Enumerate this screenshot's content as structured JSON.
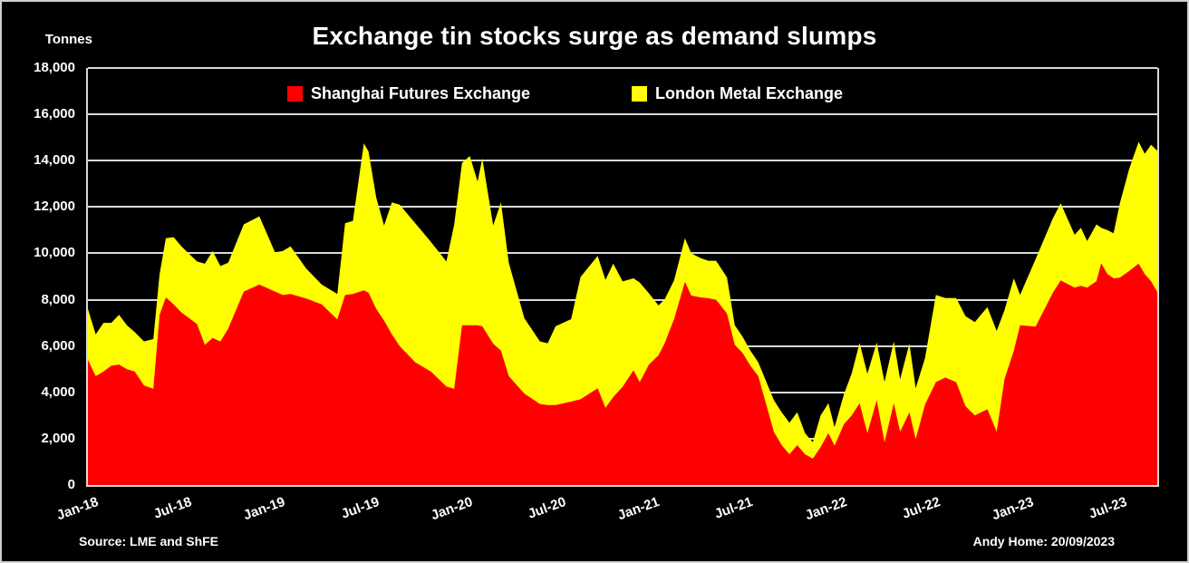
{
  "title": "Exchange tin stocks surge as demand slumps",
  "y_axis": {
    "unit_label": "Tonnes",
    "ticks": [
      "0",
      "2,000",
      "4,000",
      "6,000",
      "8,000",
      "10,000",
      "12,000",
      "14,000",
      "16,000",
      "18,000"
    ]
  },
  "x_axis": {
    "ticks": [
      {
        "label": "Jan-18",
        "m": 0
      },
      {
        "label": "Jul-18",
        "m": 6
      },
      {
        "label": "Jan-19",
        "m": 12
      },
      {
        "label": "Jul-19",
        "m": 18
      },
      {
        "label": "Jan-20",
        "m": 24
      },
      {
        "label": "Jul-20",
        "m": 30
      },
      {
        "label": "Jan-21",
        "m": 36
      },
      {
        "label": "Jul-21",
        "m": 42
      },
      {
        "label": "Jan-22",
        "m": 48
      },
      {
        "label": "Jul-22",
        "m": 54
      },
      {
        "label": "Jan-23",
        "m": 60
      },
      {
        "label": "Jul-23",
        "m": 66
      }
    ]
  },
  "legend": [
    {
      "label": "Shanghai Futures Exchange",
      "color": "#ff0000"
    },
    {
      "label": "London Metal Exchange",
      "color": "#ffff00"
    }
  ],
  "footer": {
    "source": "Source: LME and ShFE",
    "credit": "Andy Home: 20/09/2023"
  },
  "colors": {
    "background": "#000000",
    "text": "#ffffff",
    "gridline": "#d9d9d9",
    "shfe": "#ff0000",
    "lme": "#ffff00"
  },
  "chart_data": {
    "type": "area",
    "stacked": true,
    "title": "Exchange tin stocks surge as demand slumps",
    "ylabel": "Tonnes",
    "ylim": [
      0,
      18000
    ],
    "grid": true,
    "legend_position": "top",
    "x_unit": "months since Jan-2018 (series ends 20/09/2023)",
    "x_domain": [
      0,
      68.6
    ],
    "series_names": [
      "Shanghai Futures Exchange",
      "London Metal Exchange"
    ],
    "points_format": [
      "month_index",
      "shfe_tonnes",
      "lme_tonnes"
    ],
    "points": [
      [
        0,
        5400,
        2200
      ],
      [
        0.5,
        4700,
        1800
      ],
      [
        1,
        4900,
        2100
      ],
      [
        1.5,
        5150,
        1850
      ],
      [
        2,
        5200,
        2150
      ],
      [
        2.5,
        5000,
        1900
      ],
      [
        3,
        4900,
        1700
      ],
      [
        3.6,
        4300,
        1900
      ],
      [
        4.2,
        4150,
        2150
      ],
      [
        4.6,
        7350,
        1750
      ],
      [
        5,
        8100,
        2550
      ],
      [
        5.5,
        7800,
        2900
      ],
      [
        6,
        7450,
        2850
      ],
      [
        7,
        6950,
        2700
      ],
      [
        7.5,
        6050,
        3500
      ],
      [
        8,
        6350,
        3750
      ],
      [
        8.5,
        6200,
        3250
      ],
      [
        9,
        6750,
        2850
      ],
      [
        10,
        8350,
        2900
      ],
      [
        11,
        8650,
        2950
      ],
      [
        12,
        8350,
        1700
      ],
      [
        12.5,
        8200,
        1900
      ],
      [
        13,
        8250,
        2050
      ],
      [
        14,
        8050,
        1300
      ],
      [
        15,
        7800,
        850
      ],
      [
        16,
        7150,
        1100
      ],
      [
        16.5,
        8200,
        3100
      ],
      [
        17,
        8250,
        3150
      ],
      [
        17.7,
        8400,
        6350
      ],
      [
        18,
        8300,
        6100
      ],
      [
        18.5,
        7600,
        4800
      ],
      [
        19,
        7100,
        4100
      ],
      [
        19.5,
        6500,
        5700
      ],
      [
        20,
        6000,
        6100
      ],
      [
        21,
        5300,
        6000
      ],
      [
        22,
        4900,
        5600
      ],
      [
        23,
        4250,
        5400
      ],
      [
        23.5,
        4150,
        7100
      ],
      [
        24,
        6900,
        7000
      ],
      [
        24.5,
        6900,
        7300
      ],
      [
        25,
        6900,
        6200
      ],
      [
        25.3,
        6850,
        7250
      ],
      [
        26,
        6100,
        5100
      ],
      [
        26.5,
        5800,
        6400
      ],
      [
        27,
        4700,
        4900
      ],
      [
        28,
        3950,
        3250
      ],
      [
        29,
        3500,
        2700
      ],
      [
        29.5,
        3450,
        2670
      ],
      [
        30,
        3450,
        3400
      ],
      [
        31,
        3600,
        3560
      ],
      [
        31.6,
        3700,
        5280
      ],
      [
        32.7,
        4180,
        5710
      ],
      [
        33.2,
        3330,
        5520
      ],
      [
        33.7,
        3800,
        5760
      ],
      [
        34.3,
        4240,
        4550
      ],
      [
        35,
        4950,
        3970
      ],
      [
        35.4,
        4440,
        4300
      ],
      [
        36,
        5210,
        3060
      ],
      [
        36.6,
        5600,
        2150
      ],
      [
        37,
        6120,
        1890
      ],
      [
        37.6,
        7160,
        1670
      ],
      [
        38.3,
        8770,
        1880
      ],
      [
        38.7,
        8180,
        1820
      ],
      [
        39.3,
        8100,
        1700
      ],
      [
        39.8,
        8060,
        1620
      ],
      [
        40.3,
        8000,
        1680
      ],
      [
        41,
        7400,
        1560
      ],
      [
        41.5,
        6050,
        850
      ],
      [
        42,
        5700,
        700
      ],
      [
        42.5,
        5150,
        650
      ],
      [
        43,
        4700,
        600
      ],
      [
        44,
        2300,
        1370
      ],
      [
        44.5,
        1720,
        1420
      ],
      [
        45,
        1330,
        1360
      ],
      [
        45.5,
        1720,
        1420
      ],
      [
        46,
        1330,
        910
      ],
      [
        46.5,
        1140,
        710
      ],
      [
        47,
        1640,
        1360
      ],
      [
        47.5,
        2240,
        1290
      ],
      [
        47.9,
        1700,
        800
      ],
      [
        48.5,
        2630,
        1290
      ],
      [
        49,
        3010,
        1820
      ],
      [
        49.5,
        3530,
        2600
      ],
      [
        50,
        2240,
        2560
      ],
      [
        50.6,
        3660,
        2490
      ],
      [
        51.1,
        1850,
        2600
      ],
      [
        51.7,
        3530,
        2670
      ],
      [
        52.1,
        2300,
        2270
      ],
      [
        52.7,
        3140,
        2960
      ],
      [
        53.1,
        1980,
        2200
      ],
      [
        53.7,
        3470,
        2010
      ],
      [
        54.4,
        4440,
        3760
      ],
      [
        55,
        4640,
        3430
      ],
      [
        55.7,
        4440,
        3630
      ],
      [
        56.3,
        3400,
        3890
      ],
      [
        56.9,
        3010,
        4020
      ],
      [
        57.7,
        3270,
        4410
      ],
      [
        58.3,
        2300,
        4350
      ],
      [
        58.8,
        4570,
        2980
      ],
      [
        59.4,
        5800,
        3120
      ],
      [
        59.8,
        6900,
        1300
      ],
      [
        60.8,
        6840,
        2920
      ],
      [
        61.9,
        8300,
        3210
      ],
      [
        62.4,
        8835,
        3325
      ],
      [
        63.3,
        8520,
        2280
      ],
      [
        63.7,
        8600,
        2500
      ],
      [
        64.1,
        8520,
        2010
      ],
      [
        64.7,
        8800,
        2450
      ],
      [
        65,
        9570,
        1530
      ],
      [
        65.4,
        9110,
        1890
      ],
      [
        65.8,
        8920,
        1950
      ],
      [
        66.2,
        8950,
        3210
      ],
      [
        66.8,
        9240,
        4410
      ],
      [
        67.4,
        9560,
        5250
      ],
      [
        67.8,
        9100,
        5200
      ],
      [
        68.2,
        8800,
        5890
      ],
      [
        68.6,
        8330,
        6100
      ]
    ]
  }
}
